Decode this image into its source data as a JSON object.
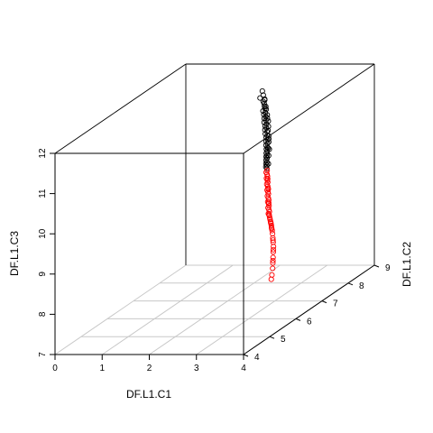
{
  "chart_data": {
    "type": "scatter",
    "projection": "3d-box",
    "xlabel": "DF.L1.C1",
    "ylabel": "DF.L1.C2",
    "zlabel": "DF.L1.C3",
    "xlim": [
      0,
      4
    ],
    "ylim": [
      4,
      9
    ],
    "zlim": [
      7,
      12
    ],
    "x_ticks": [
      "0",
      "1",
      "2",
      "3",
      "4"
    ],
    "y_ticks": [
      "4",
      "5",
      "6",
      "7",
      "8",
      "9"
    ],
    "z_ticks": [
      "7",
      "8",
      "9",
      "10",
      "11",
      "12"
    ],
    "grid": "on (x-y floor)",
    "colors": {
      "box": "#000000",
      "grid": "#c8c8c8"
    },
    "series": [
      {
        "color": "#000000",
        "points": [
          [
            2.4,
            7.6,
            11.95
          ],
          [
            2.42,
            7.6,
            11.85
          ],
          [
            2.38,
            7.55,
            11.8
          ],
          [
            2.45,
            7.6,
            11.75
          ],
          [
            2.43,
            7.58,
            11.7
          ],
          [
            2.46,
            7.56,
            11.66
          ],
          [
            2.48,
            7.54,
            11.6
          ],
          [
            2.5,
            7.52,
            11.55
          ],
          [
            2.47,
            7.5,
            11.5
          ],
          [
            2.52,
            7.5,
            11.46
          ],
          [
            2.5,
            7.48,
            11.42
          ],
          [
            2.55,
            7.46,
            11.38
          ],
          [
            2.53,
            7.44,
            11.34
          ],
          [
            2.57,
            7.43,
            11.3
          ],
          [
            2.55,
            7.4,
            11.26
          ],
          [
            2.6,
            7.4,
            11.22
          ],
          [
            2.58,
            7.38,
            11.18
          ],
          [
            2.62,
            7.36,
            11.14
          ],
          [
            2.6,
            7.34,
            11.1
          ],
          [
            2.65,
            7.33,
            11.06
          ],
          [
            2.63,
            7.3,
            11.02
          ],
          [
            2.67,
            7.3,
            10.98
          ],
          [
            2.66,
            7.28,
            10.94
          ],
          [
            2.7,
            7.26,
            10.9
          ],
          [
            2.68,
            7.24,
            10.86
          ],
          [
            2.72,
            7.22,
            10.82
          ],
          [
            2.7,
            7.2,
            10.78
          ],
          [
            2.74,
            7.18,
            10.74
          ],
          [
            2.73,
            7.16,
            10.7
          ],
          [
            2.76,
            7.14,
            10.66
          ],
          [
            2.75,
            7.12,
            10.62
          ],
          [
            2.78,
            7.1,
            10.58
          ],
          [
            2.77,
            7.08,
            10.55
          ],
          [
            2.8,
            7.06,
            10.52
          ],
          [
            2.79,
            7.04,
            10.48
          ],
          [
            2.82,
            7.02,
            10.44
          ],
          [
            2.81,
            7.0,
            10.41
          ],
          [
            2.84,
            6.98,
            10.38
          ],
          [
            2.83,
            6.96,
            10.35
          ],
          [
            2.86,
            6.94,
            10.32
          ],
          [
            2.44,
            7.62,
            11.72
          ],
          [
            2.49,
            7.57,
            11.58
          ],
          [
            2.56,
            7.5,
            11.4
          ],
          [
            2.61,
            7.45,
            11.27
          ],
          [
            2.66,
            7.35,
            11.08
          ],
          [
            2.69,
            7.32,
            10.96
          ],
          [
            2.73,
            7.25,
            10.84
          ],
          [
            2.77,
            7.2,
            10.68
          ],
          [
            2.8,
            7.12,
            10.56
          ],
          [
            2.85,
            7.02,
            10.4
          ],
          [
            2.51,
            7.55,
            11.52
          ],
          [
            2.58,
            7.47,
            11.33
          ],
          [
            2.64,
            7.4,
            11.16
          ],
          [
            2.71,
            7.29,
            10.9
          ],
          [
            2.76,
            7.18,
            10.72
          ]
        ]
      },
      {
        "color": "#ff0000",
        "points": [
          [
            2.88,
            6.92,
            10.28
          ],
          [
            2.87,
            6.9,
            10.24
          ],
          [
            2.9,
            6.88,
            10.2
          ],
          [
            2.92,
            6.86,
            10.16
          ],
          [
            2.91,
            6.84,
            10.12
          ],
          [
            2.94,
            6.82,
            10.08
          ],
          [
            2.96,
            6.8,
            10.04
          ],
          [
            2.95,
            6.78,
            10.0
          ],
          [
            2.98,
            6.76,
            9.96
          ],
          [
            3.0,
            6.74,
            9.92
          ],
          [
            2.99,
            6.72,
            9.88
          ],
          [
            3.02,
            6.7,
            9.84
          ],
          [
            3.04,
            6.68,
            9.8
          ],
          [
            3.03,
            6.66,
            9.76
          ],
          [
            3.06,
            6.64,
            9.72
          ],
          [
            3.08,
            6.62,
            9.68
          ],
          [
            3.07,
            6.6,
            9.64
          ],
          [
            3.1,
            6.58,
            9.6
          ],
          [
            3.12,
            6.56,
            9.56
          ],
          [
            3.11,
            6.54,
            9.52
          ],
          [
            3.14,
            6.52,
            9.48
          ],
          [
            3.16,
            6.5,
            9.44
          ],
          [
            3.15,
            6.48,
            9.4
          ],
          [
            3.18,
            6.46,
            9.36
          ],
          [
            3.2,
            6.44,
            9.32
          ],
          [
            3.22,
            6.42,
            9.28
          ],
          [
            3.24,
            6.4,
            9.24
          ],
          [
            3.26,
            6.38,
            9.2
          ],
          [
            3.28,
            6.36,
            9.16
          ],
          [
            3.3,
            6.33,
            9.12
          ],
          [
            3.33,
            6.3,
            9.06
          ],
          [
            3.36,
            6.26,
            9.0
          ],
          [
            3.4,
            6.2,
            8.92
          ],
          [
            3.44,
            6.14,
            8.84
          ],
          [
            3.48,
            6.08,
            8.76
          ],
          [
            3.52,
            6.0,
            8.66
          ],
          [
            3.56,
            5.92,
            8.56
          ],
          [
            3.6,
            5.84,
            8.46
          ],
          [
            3.64,
            5.76,
            8.36
          ],
          [
            3.68,
            5.66,
            8.24
          ],
          [
            2.93,
            6.85,
            10.1
          ],
          [
            3.01,
            6.73,
            9.9
          ],
          [
            3.09,
            6.6,
            9.62
          ],
          [
            3.17,
            6.47,
            9.38
          ],
          [
            3.25,
            6.39,
            9.22
          ],
          [
            3.31,
            6.32,
            9.1
          ],
          [
            3.42,
            6.17,
            8.88
          ],
          [
            3.5,
            6.04,
            8.7
          ],
          [
            3.58,
            5.88,
            8.5
          ],
          [
            3.7,
            5.6,
            8.16
          ]
        ]
      }
    ]
  }
}
